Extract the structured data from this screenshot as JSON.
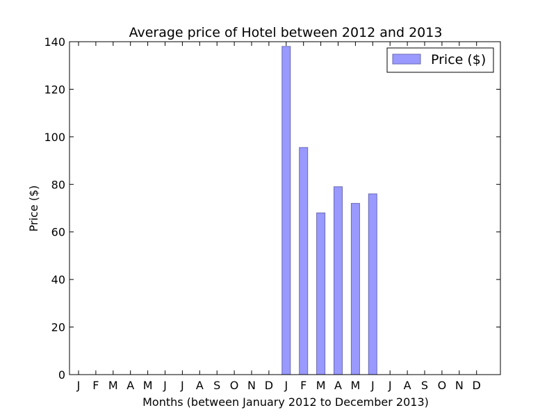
{
  "chart_data": {
    "type": "bar",
    "title": "Average price of Hotel between 2012 and 2013",
    "xlabel": "Months (between January 2012 to December 2013)",
    "ylabel": "Price ($)",
    "ylim": [
      0,
      140
    ],
    "yticks": [
      0,
      20,
      40,
      60,
      80,
      100,
      120,
      140
    ],
    "categories": [
      "J",
      "F",
      "M",
      "A",
      "M",
      "J",
      "J",
      "A",
      "S",
      "O",
      "N",
      "D",
      "J",
      "F",
      "M",
      "A",
      "M",
      "J",
      "J",
      "A",
      "S",
      "O",
      "N",
      "D"
    ],
    "series": [
      {
        "name": "Price ($)",
        "values": [
          null,
          null,
          null,
          null,
          null,
          null,
          null,
          null,
          null,
          null,
          null,
          null,
          138,
          95.5,
          68,
          79,
          72,
          76,
          null,
          null,
          null,
          null,
          null,
          null
        ]
      }
    ],
    "legend_position": "top-right",
    "grid": false,
    "colors": {
      "bar_fill": "#9999ff",
      "bar_edge": "#6a6ab0",
      "axes": "#000000"
    }
  }
}
